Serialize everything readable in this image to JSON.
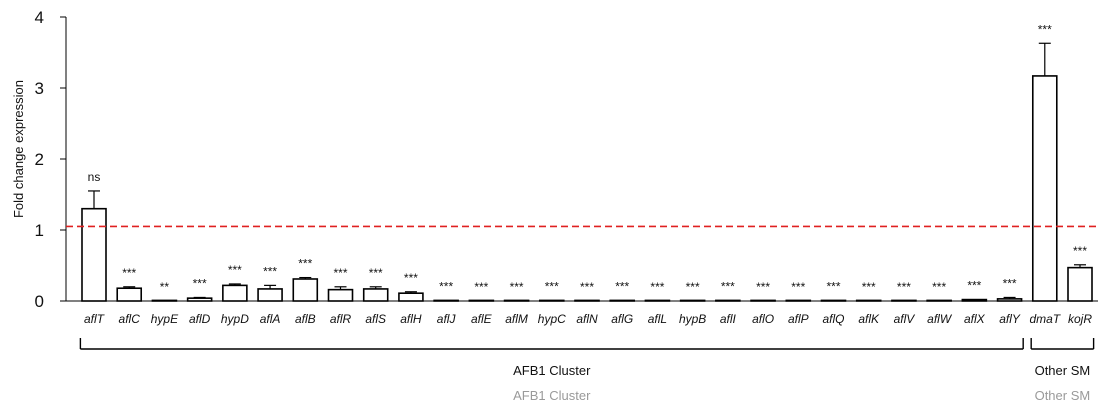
{
  "chart_data": {
    "type": "bar",
    "title": "",
    "xlabel": "",
    "ylabel": "Fold change expression",
    "ylim": [
      0,
      4
    ],
    "yticks": [
      0,
      1,
      2,
      3,
      4
    ],
    "grid": false,
    "legend": "none",
    "reference_line": {
      "y": 1.05,
      "color": "#e02020",
      "style": "dashed"
    },
    "bar_fill": "#ffffff",
    "bar_stroke": "#000000",
    "categories": [
      "aflT",
      "aflC",
      "hypE",
      "aflD",
      "hypD",
      "aflA",
      "aflB",
      "aflR",
      "aflS",
      "aflH",
      "aflJ",
      "aflE",
      "aflM",
      "hypC",
      "aflN",
      "aflG",
      "aflL",
      "hypB",
      "aflI",
      "aflO",
      "aflP",
      "aflQ",
      "aflK",
      "aflV",
      "aflW",
      "aflX",
      "aflY",
      "dmaT",
      "kojR"
    ],
    "values": [
      1.3,
      0.18,
      0.0,
      0.04,
      0.22,
      0.17,
      0.31,
      0.16,
      0.17,
      0.11,
      0.005,
      0.0,
      0.0,
      0.005,
      0.0,
      0.005,
      0.0,
      0.0,
      0.005,
      0.0,
      0.0,
      0.005,
      0.0,
      0.0,
      0.0,
      0.02,
      0.03,
      3.17,
      0.47
    ],
    "errors": [
      0.25,
      0.02,
      0.0,
      0.01,
      0.02,
      0.05,
      0.02,
      0.04,
      0.03,
      0.02,
      0.0,
      0.0,
      0.0,
      0.0,
      0.0,
      0.0,
      0.0,
      0.0,
      0.0,
      0.0,
      0.0,
      0.0,
      0.0,
      0.0,
      0.0,
      0.0,
      0.02,
      0.46,
      0.04
    ],
    "significance": [
      "ns",
      "***",
      "**",
      "***",
      "***",
      "***",
      "***",
      "***",
      "***",
      "***",
      "***",
      "***",
      "***",
      "***",
      "***",
      "***",
      "***",
      "***",
      "***",
      "***",
      "***",
      "***",
      "***",
      "***",
      "***",
      "***",
      "***",
      "***",
      "***"
    ],
    "groups": [
      {
        "name": "AFB1 Cluster",
        "start": 0,
        "end": 26
      },
      {
        "name": "Other SM",
        "start": 27,
        "end": 28
      }
    ],
    "ghost_labels": [
      "AFB1 Cluster",
      "Other SM"
    ]
  }
}
